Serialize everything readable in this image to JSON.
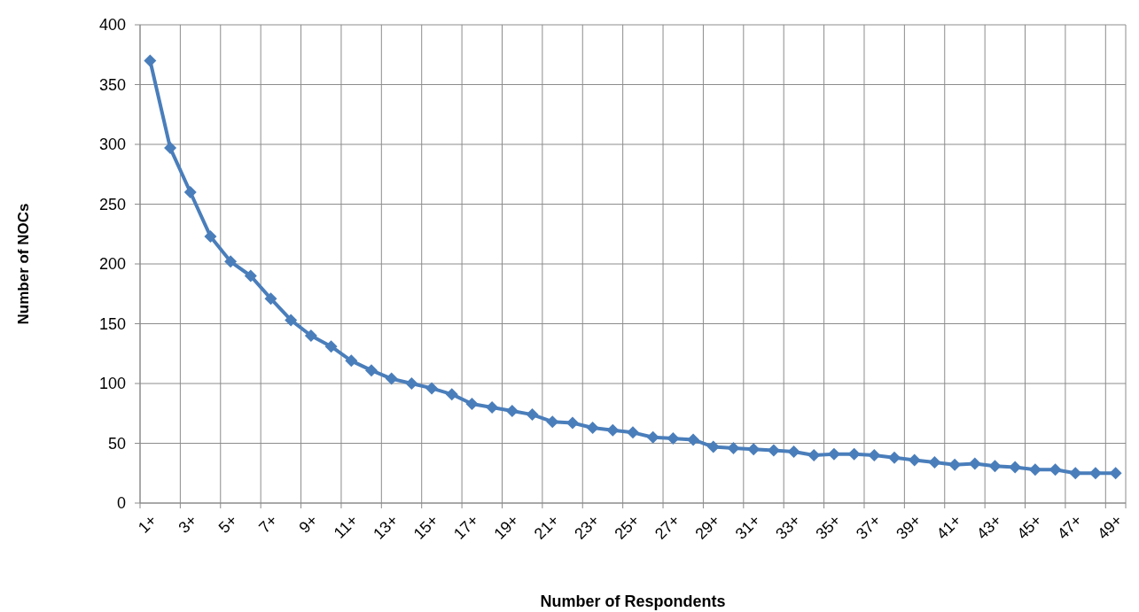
{
  "chart_data": {
    "type": "line",
    "xlabel": "Number of Respondents",
    "ylabel": "Number of NOCs",
    "categories": [
      "1+",
      null,
      "3+",
      null,
      "5+",
      null,
      "7+",
      null,
      "9+",
      null,
      "11+",
      null,
      "13+",
      null,
      "15+",
      null,
      "17+",
      null,
      "19+",
      null,
      "21+",
      null,
      "23+",
      null,
      "25+",
      null,
      "27+",
      null,
      "29+",
      null,
      "31+",
      null,
      "33+",
      null,
      "35+",
      null,
      "37+",
      null,
      "39+",
      null,
      "41+",
      null,
      "43+",
      null,
      "45+",
      null,
      "47+",
      null,
      "49+"
    ],
    "series": [
      {
        "color": "#4a7ebb",
        "values": [
          370,
          297,
          260,
          223,
          202,
          190,
          171,
          153,
          140,
          131,
          119,
          111,
          104,
          100,
          96,
          91,
          83,
          80,
          77,
          74,
          68,
          67,
          63,
          61,
          59,
          55,
          54,
          53,
          47,
          46,
          45,
          44,
          43,
          40,
          41,
          41,
          40,
          38,
          36,
          34,
          32,
          33,
          31,
          30,
          28,
          28,
          25,
          25,
          25
        ]
      }
    ],
    "ylim": [
      0,
      400
    ],
    "yticks": [
      0,
      50,
      100,
      150,
      200,
      250,
      300,
      350,
      400
    ],
    "grid": true,
    "marker": "diamond",
    "line_style": "solid"
  }
}
